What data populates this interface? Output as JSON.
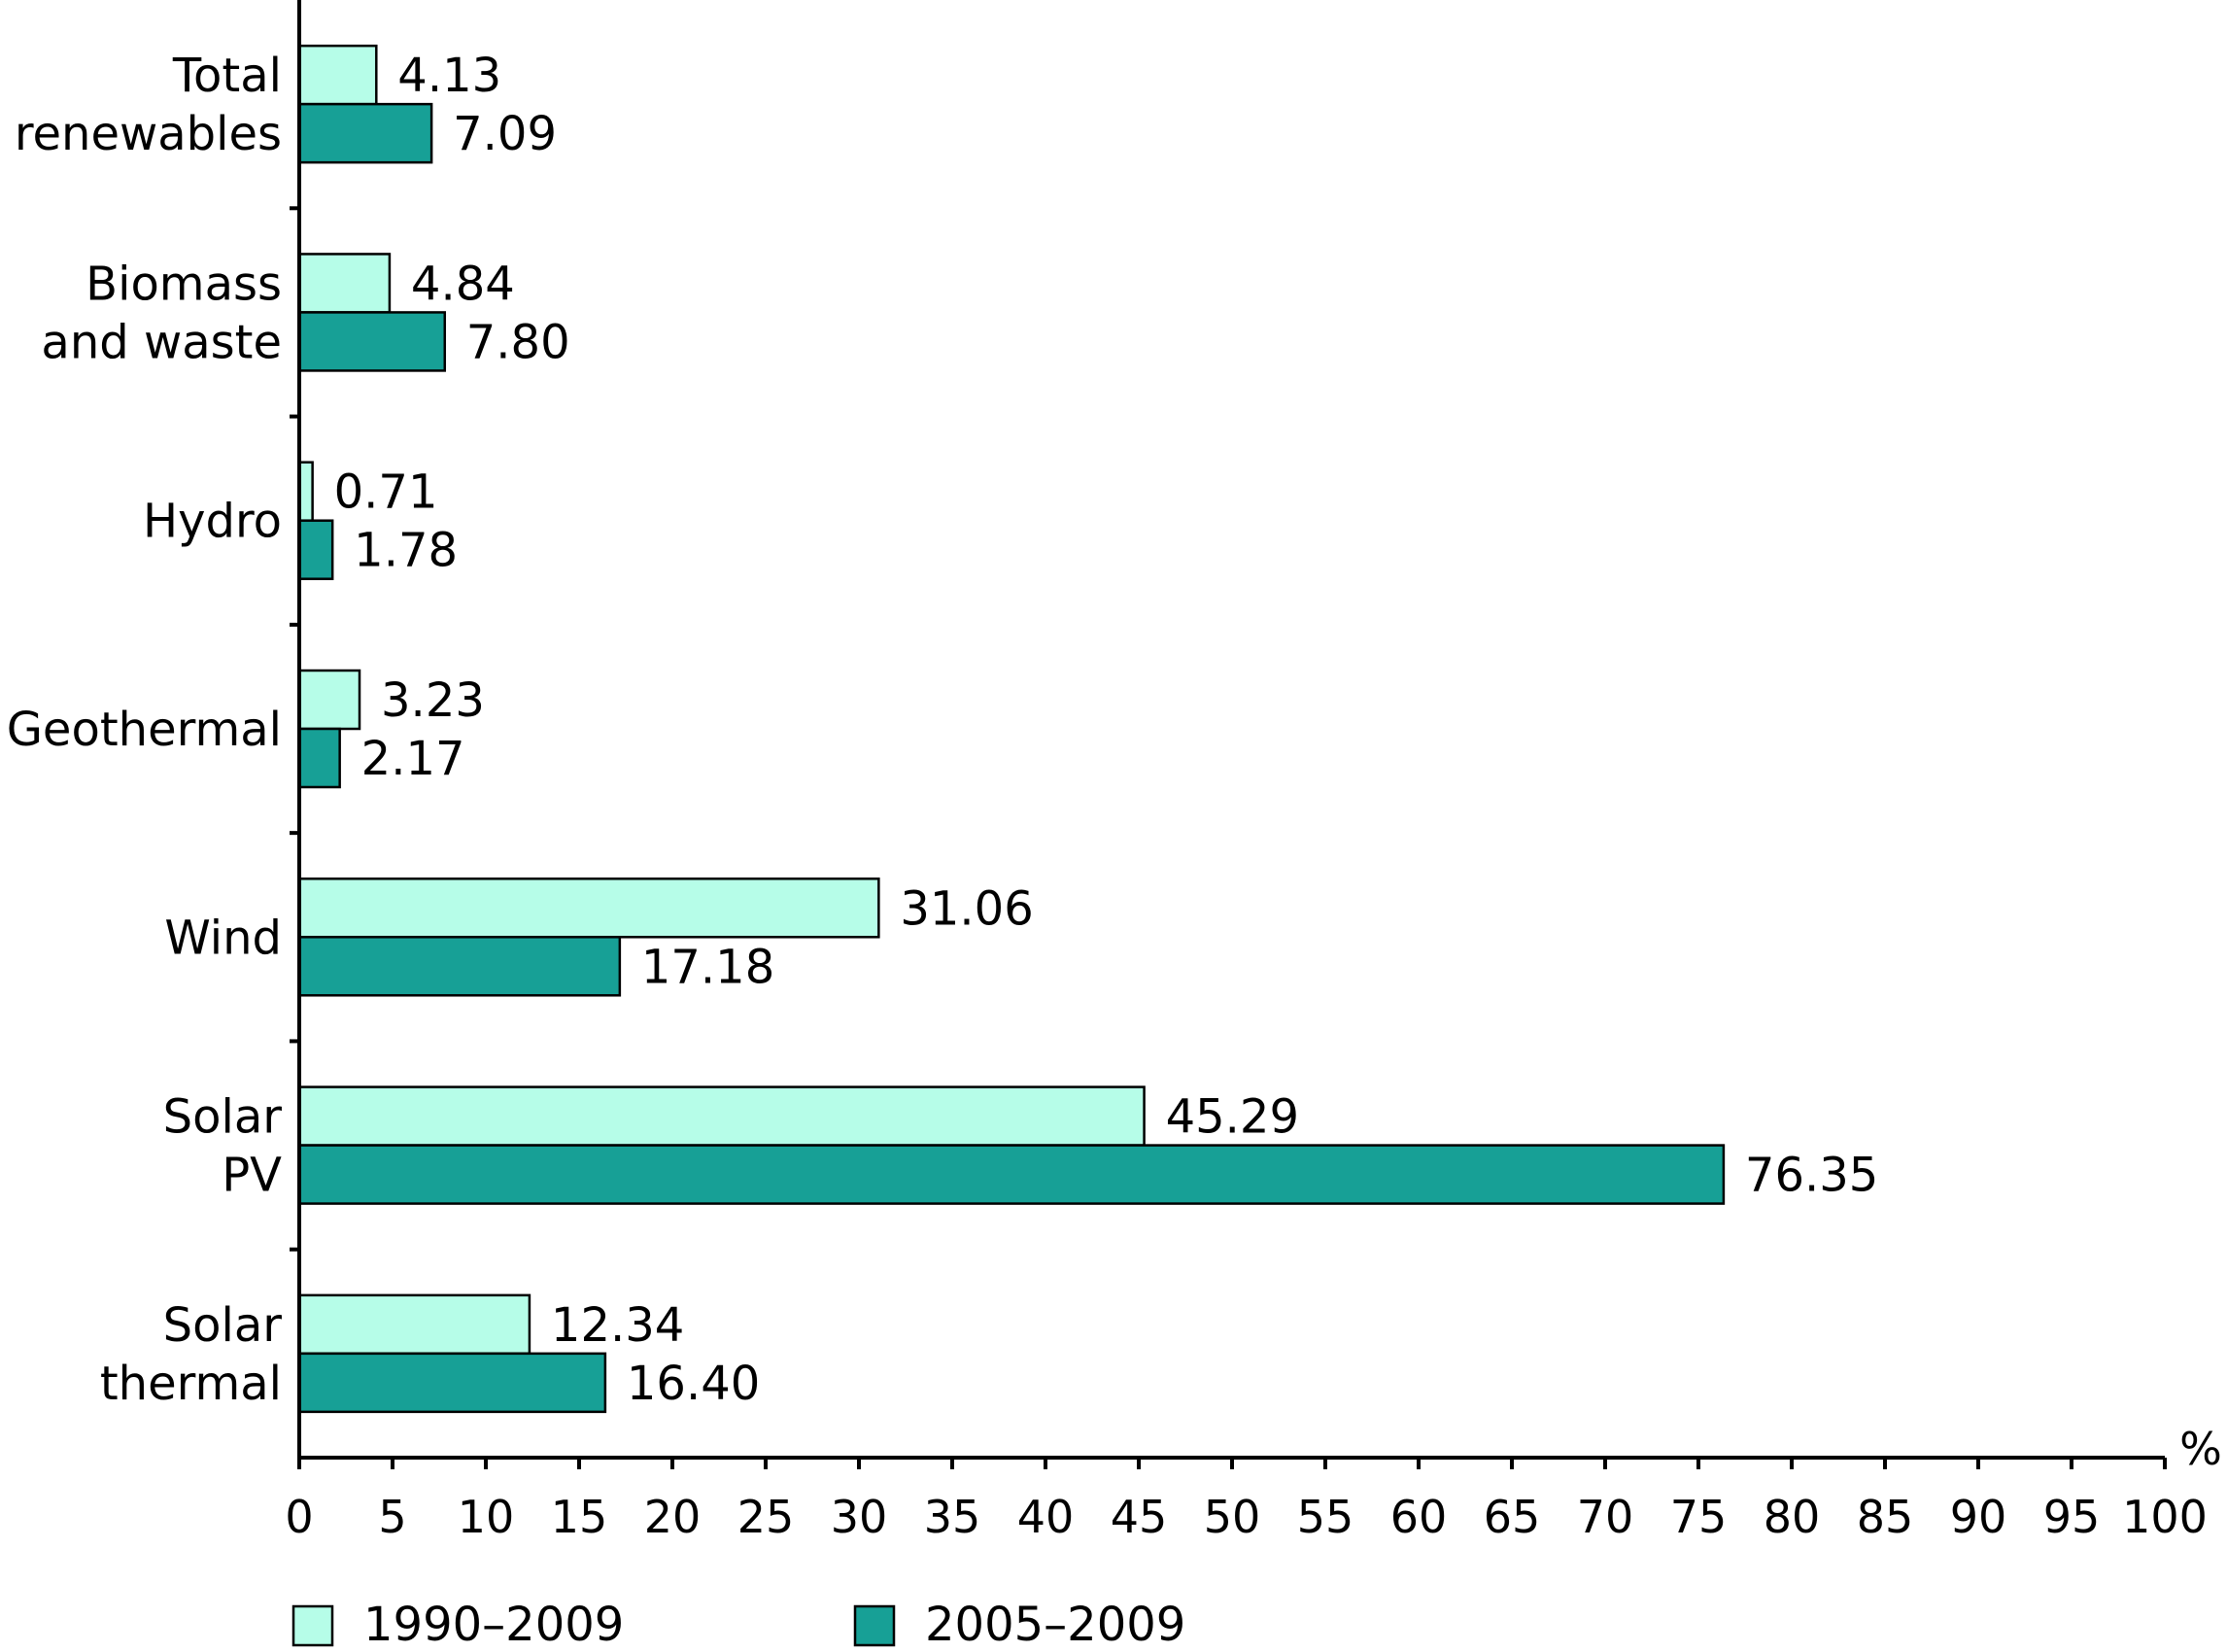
{
  "chart_data": {
    "type": "bar",
    "orientation": "horizontal",
    "categories": [
      [
        "Total",
        "renewables"
      ],
      [
        "Biomass",
        "and waste"
      ],
      [
        "Hydro"
      ],
      [
        "Geothermal"
      ],
      [
        "Wind"
      ],
      [
        "Solar",
        "PV"
      ],
      [
        "Solar",
        "thermal"
      ]
    ],
    "series": [
      {
        "name": "1990–2009",
        "color": "#b6fde8",
        "values": [
          4.13,
          4.84,
          0.71,
          3.23,
          31.06,
          45.29,
          12.34
        ],
        "labels": [
          "4.13",
          "4.84",
          "0.71",
          "3.23",
          "31.06",
          "45.29",
          "12.34"
        ]
      },
      {
        "name": "2005–2009",
        "color": "#17a096",
        "values": [
          7.09,
          7.8,
          1.78,
          2.17,
          17.18,
          76.35,
          16.4
        ],
        "labels": [
          "7.09",
          "7.80",
          "1.78",
          "2.17",
          "17.18",
          "76.35",
          "16.40"
        ]
      }
    ],
    "x_unit": "%",
    "xlim": [
      0,
      100
    ],
    "xticks": [
      "0",
      "5",
      "10",
      "15",
      "20",
      "25",
      "30",
      "35",
      "40",
      "45",
      "50",
      "55",
      "60",
      "65",
      "70",
      "75",
      "80",
      "85",
      "90",
      "95",
      "100"
    ],
    "legend_position": "bottom",
    "grid": false,
    "title": ""
  }
}
